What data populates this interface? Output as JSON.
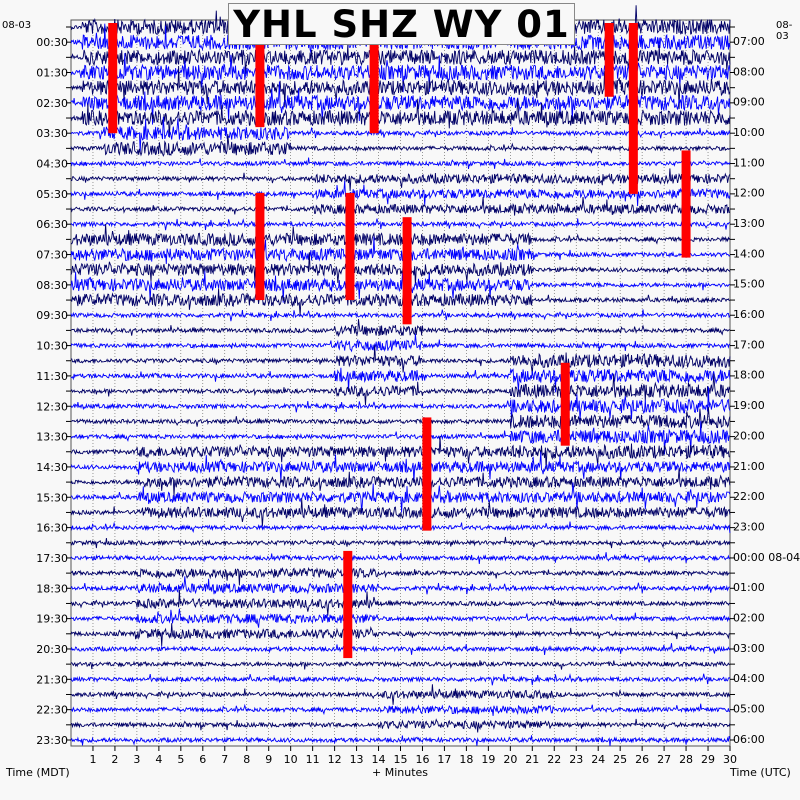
{
  "title": "YHL SHZ WY 01",
  "date_left": "08-03",
  "date_right_top": "08-03",
  "left_axis_title": "Time (MDT)",
  "right_axis_title": "Time (UTC)",
  "bottom_axis_title": "+ Minutes",
  "colors": {
    "background": "#f8f8f8",
    "trace_dark": "#000066",
    "trace_blue": "#0000ff",
    "clip": "#ff0000",
    "grid": "#555555"
  },
  "chart_data": {
    "type": "helicorder",
    "x_ticks": [
      "1",
      "2",
      "3",
      "4",
      "5",
      "6",
      "7",
      "8",
      "9",
      "10",
      "11",
      "12",
      "13",
      "14",
      "15",
      "16",
      "17",
      "18",
      "19",
      "20",
      "21",
      "22",
      "23",
      "24",
      "25",
      "26",
      "27",
      "28",
      "29",
      "30"
    ],
    "xlim": [
      0,
      30
    ],
    "row_minutes": 15,
    "left_labels": [
      "00:30",
      "01:30",
      "02:30",
      "03:30",
      "04:30",
      "05:30",
      "06:30",
      "07:30",
      "08:30",
      "09:30",
      "10:30",
      "11:30",
      "12:30",
      "13:30",
      "14:30",
      "15:30",
      "16:30",
      "17:30",
      "18:30",
      "19:30",
      "20:30",
      "21:30",
      "22:30",
      "23:30"
    ],
    "right_labels": [
      "07:00",
      "08:00",
      "09:00",
      "10:00",
      "11:00",
      "12:00",
      "13:00",
      "14:00",
      "15:00",
      "16:00",
      "17:00",
      "18:00",
      "19:00",
      "20:00",
      "21:00",
      "22:00",
      "23:00",
      "00:00 08-04",
      "01:00",
      "02:00",
      "03:00",
      "04:00",
      "05:00",
      "06:00"
    ],
    "clipped_events": [
      {
        "minute": 1.9,
        "from_row": 0.0,
        "to_row": 3.5
      },
      {
        "minute": 8.6,
        "from_row": 0.0,
        "to_row": 3.3
      },
      {
        "minute": 13.8,
        "from_row": 0.5,
        "to_row": 3.5
      },
      {
        "minute": 24.5,
        "from_row": 0.0,
        "to_row": 2.3
      },
      {
        "minute": 25.6,
        "from_row": 0.0,
        "to_row": 5.5
      },
      {
        "minute": 8.6,
        "from_row": 5.6,
        "to_row": 9.0
      },
      {
        "minute": 12.7,
        "from_row": 5.6,
        "to_row": 9.0
      },
      {
        "minute": 15.3,
        "from_row": 6.4,
        "to_row": 9.8
      },
      {
        "minute": 28.0,
        "from_row": 4.2,
        "to_row": 7.6
      },
      {
        "minute": 22.5,
        "from_row": 11.2,
        "to_row": 13.8
      },
      {
        "minute": 16.2,
        "from_row": 13.0,
        "to_row": 16.6
      },
      {
        "minute": 12.6,
        "from_row": 17.4,
        "to_row": 20.8
      }
    ],
    "activity": [
      {
        "rows": [
          0,
          3
        ],
        "from": 0.5,
        "to": 30,
        "level": 0.9
      },
      {
        "rows": [
          3,
          4
        ],
        "from": 1.5,
        "to": 10,
        "level": 0.8
      },
      {
        "rows": [
          5,
          6
        ],
        "from": 11,
        "to": 30,
        "level": 0.5
      },
      {
        "rows": [
          7,
          9
        ],
        "from": 0,
        "to": 21,
        "level": 0.7
      },
      {
        "rows": [
          10,
          12
        ],
        "from": 12,
        "to": 16,
        "level": 0.6
      },
      {
        "rows": [
          11,
          14
        ],
        "from": 20,
        "to": 30,
        "level": 0.8
      },
      {
        "rows": [
          14,
          16
        ],
        "from": 3,
        "to": 30,
        "level": 0.6
      },
      {
        "rows": [
          18,
          20
        ],
        "from": 3,
        "to": 14,
        "level": 0.5
      },
      {
        "rows": [
          22,
          23
        ],
        "from": 14,
        "to": 22,
        "level": 0.4
      }
    ]
  }
}
